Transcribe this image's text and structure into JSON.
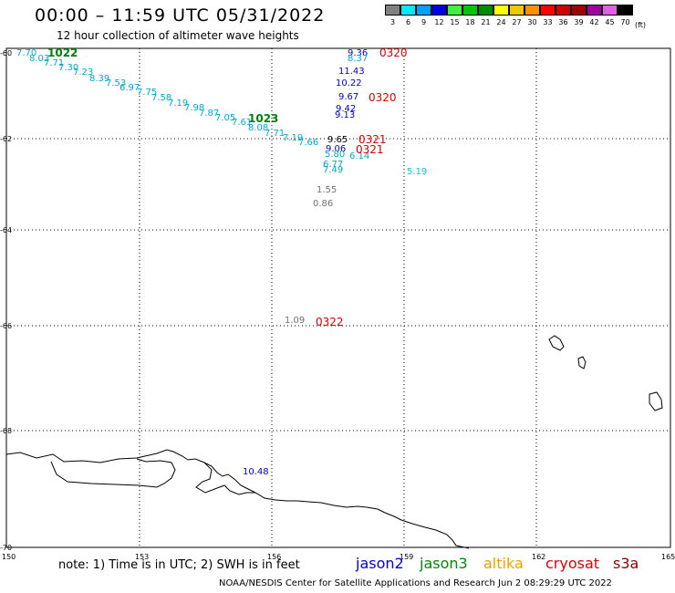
{
  "header": {
    "title": "00:00 – 11:59 UTC 05/31/2022",
    "subtitle": "12 hour collection of altimeter wave heights"
  },
  "color_scale": {
    "unit": "(ft)",
    "bins": [
      {
        "label": "3",
        "color": "#808080"
      },
      {
        "label": "6",
        "color": "#00e8ff"
      },
      {
        "label": "9",
        "color": "#00a0ff"
      },
      {
        "label": "12",
        "color": "#0000e0"
      },
      {
        "label": "15",
        "color": "#40f040"
      },
      {
        "label": "18",
        "color": "#00c800"
      },
      {
        "label": "21",
        "color": "#008c00"
      },
      {
        "label": "24",
        "color": "#ffff00"
      },
      {
        "label": "27",
        "color": "#f0c800"
      },
      {
        "label": "30",
        "color": "#ff9000"
      },
      {
        "label": "33",
        "color": "#ff0000"
      },
      {
        "label": "36",
        "color": "#d00000"
      },
      {
        "label": "39",
        "color": "#a00000"
      },
      {
        "label": "42",
        "color": "#a000a0"
      },
      {
        "label": "45",
        "color": "#e060e0"
      },
      {
        "label": "70",
        "color": "#000000"
      }
    ]
  },
  "axes": {
    "lon_ticks": [
      "150",
      "153",
      "156",
      "159",
      "162",
      "165"
    ],
    "lat_ticks": [
      "-60",
      "-62",
      "-64",
      "-66",
      "-68",
      "-70"
    ]
  },
  "points": [
    {
      "text": "7.70",
      "color": "#00a8d0"
    },
    {
      "text": "8.03",
      "color": "#00a8d0"
    },
    {
      "text": "7.71",
      "color": "#00a8d0"
    },
    {
      "text": "7.30",
      "color": "#00a8d0"
    },
    {
      "text": "7.23",
      "color": "#00a8d0"
    },
    {
      "text": "8.39",
      "color": "#00a8d0"
    },
    {
      "text": "7.53",
      "color": "#00a8d0"
    },
    {
      "text": "6.97",
      "color": "#00a8d0"
    },
    {
      "text": "7.75",
      "color": "#00a8d0"
    },
    {
      "text": "7.58",
      "color": "#00a8d0"
    },
    {
      "text": "7.19",
      "color": "#00a8d0"
    },
    {
      "text": "7.98",
      "color": "#00a8d0"
    },
    {
      "text": "7.87",
      "color": "#00a8d0"
    },
    {
      "text": "7.05",
      "color": "#00a8d0"
    },
    {
      "text": "7.61",
      "color": "#00a8d0"
    },
    {
      "text": "8.08",
      "color": "#00a8d0"
    },
    {
      "text": "7.71",
      "color": "#00a8d0"
    },
    {
      "text": "7.19",
      "color": "#00a8d0"
    },
    {
      "text": "7.66",
      "color": "#00a8d0"
    },
    {
      "text": "9.36",
      "color": "#0000d0"
    },
    {
      "text": "8.37",
      "color": "#00a8d0"
    },
    {
      "text": "11.43",
      "color": "#0000d0"
    },
    {
      "text": "10.22",
      "color": "#0000d0"
    },
    {
      "text": "9.67",
      "color": "#0000d0"
    },
    {
      "text": "9.42",
      "color": "#0000d0"
    },
    {
      "text": "9.13",
      "color": "#0000d0"
    },
    {
      "text": "9.65",
      "color": "#000000"
    },
    {
      "text": "9.06",
      "color": "#0000d0"
    },
    {
      "text": "5.80",
      "color": "#00a8d0"
    },
    {
      "text": "6.14",
      "color": "#00a8d0"
    },
    {
      "text": "6.77",
      "color": "#00a8d0"
    },
    {
      "text": "7.49",
      "color": "#00a8d0"
    },
    {
      "text": "5.19",
      "color": "#00c8e8"
    },
    {
      "text": "1.55",
      "color": "#707070"
    },
    {
      "text": "0.86",
      "color": "#707070"
    },
    {
      "text": "1.09",
      "color": "#707070"
    },
    {
      "text": "10.48",
      "color": "#0000d0"
    }
  ],
  "pass_labels": [
    {
      "text": "1022",
      "color": "#00800a"
    },
    {
      "text": "1023",
      "color": "#00800a"
    },
    {
      "text": "0320",
      "color": "#e00000"
    },
    {
      "text": "0320",
      "color": "#e00000"
    },
    {
      "text": "0321",
      "color": "#e00000"
    },
    {
      "text": "0321",
      "color": "#e00000"
    },
    {
      "text": "0322",
      "color": "#e00000"
    }
  ],
  "note": "note: 1) Time is in UTC; 2) SWH is in feet",
  "satellites": [
    {
      "name": "jason2",
      "color": "#0000e0"
    },
    {
      "name": "jason3",
      "color": "#008c00"
    },
    {
      "name": "altika",
      "color": "#f0a000"
    },
    {
      "name": "cryosat",
      "color": "#e00000"
    },
    {
      "name": "s3a",
      "color": "#900000"
    }
  ],
  "footer": "NOAA/NESDIS Center for Satellite Applications and Research    Jun  2 08:29:29 UTC 2022"
}
